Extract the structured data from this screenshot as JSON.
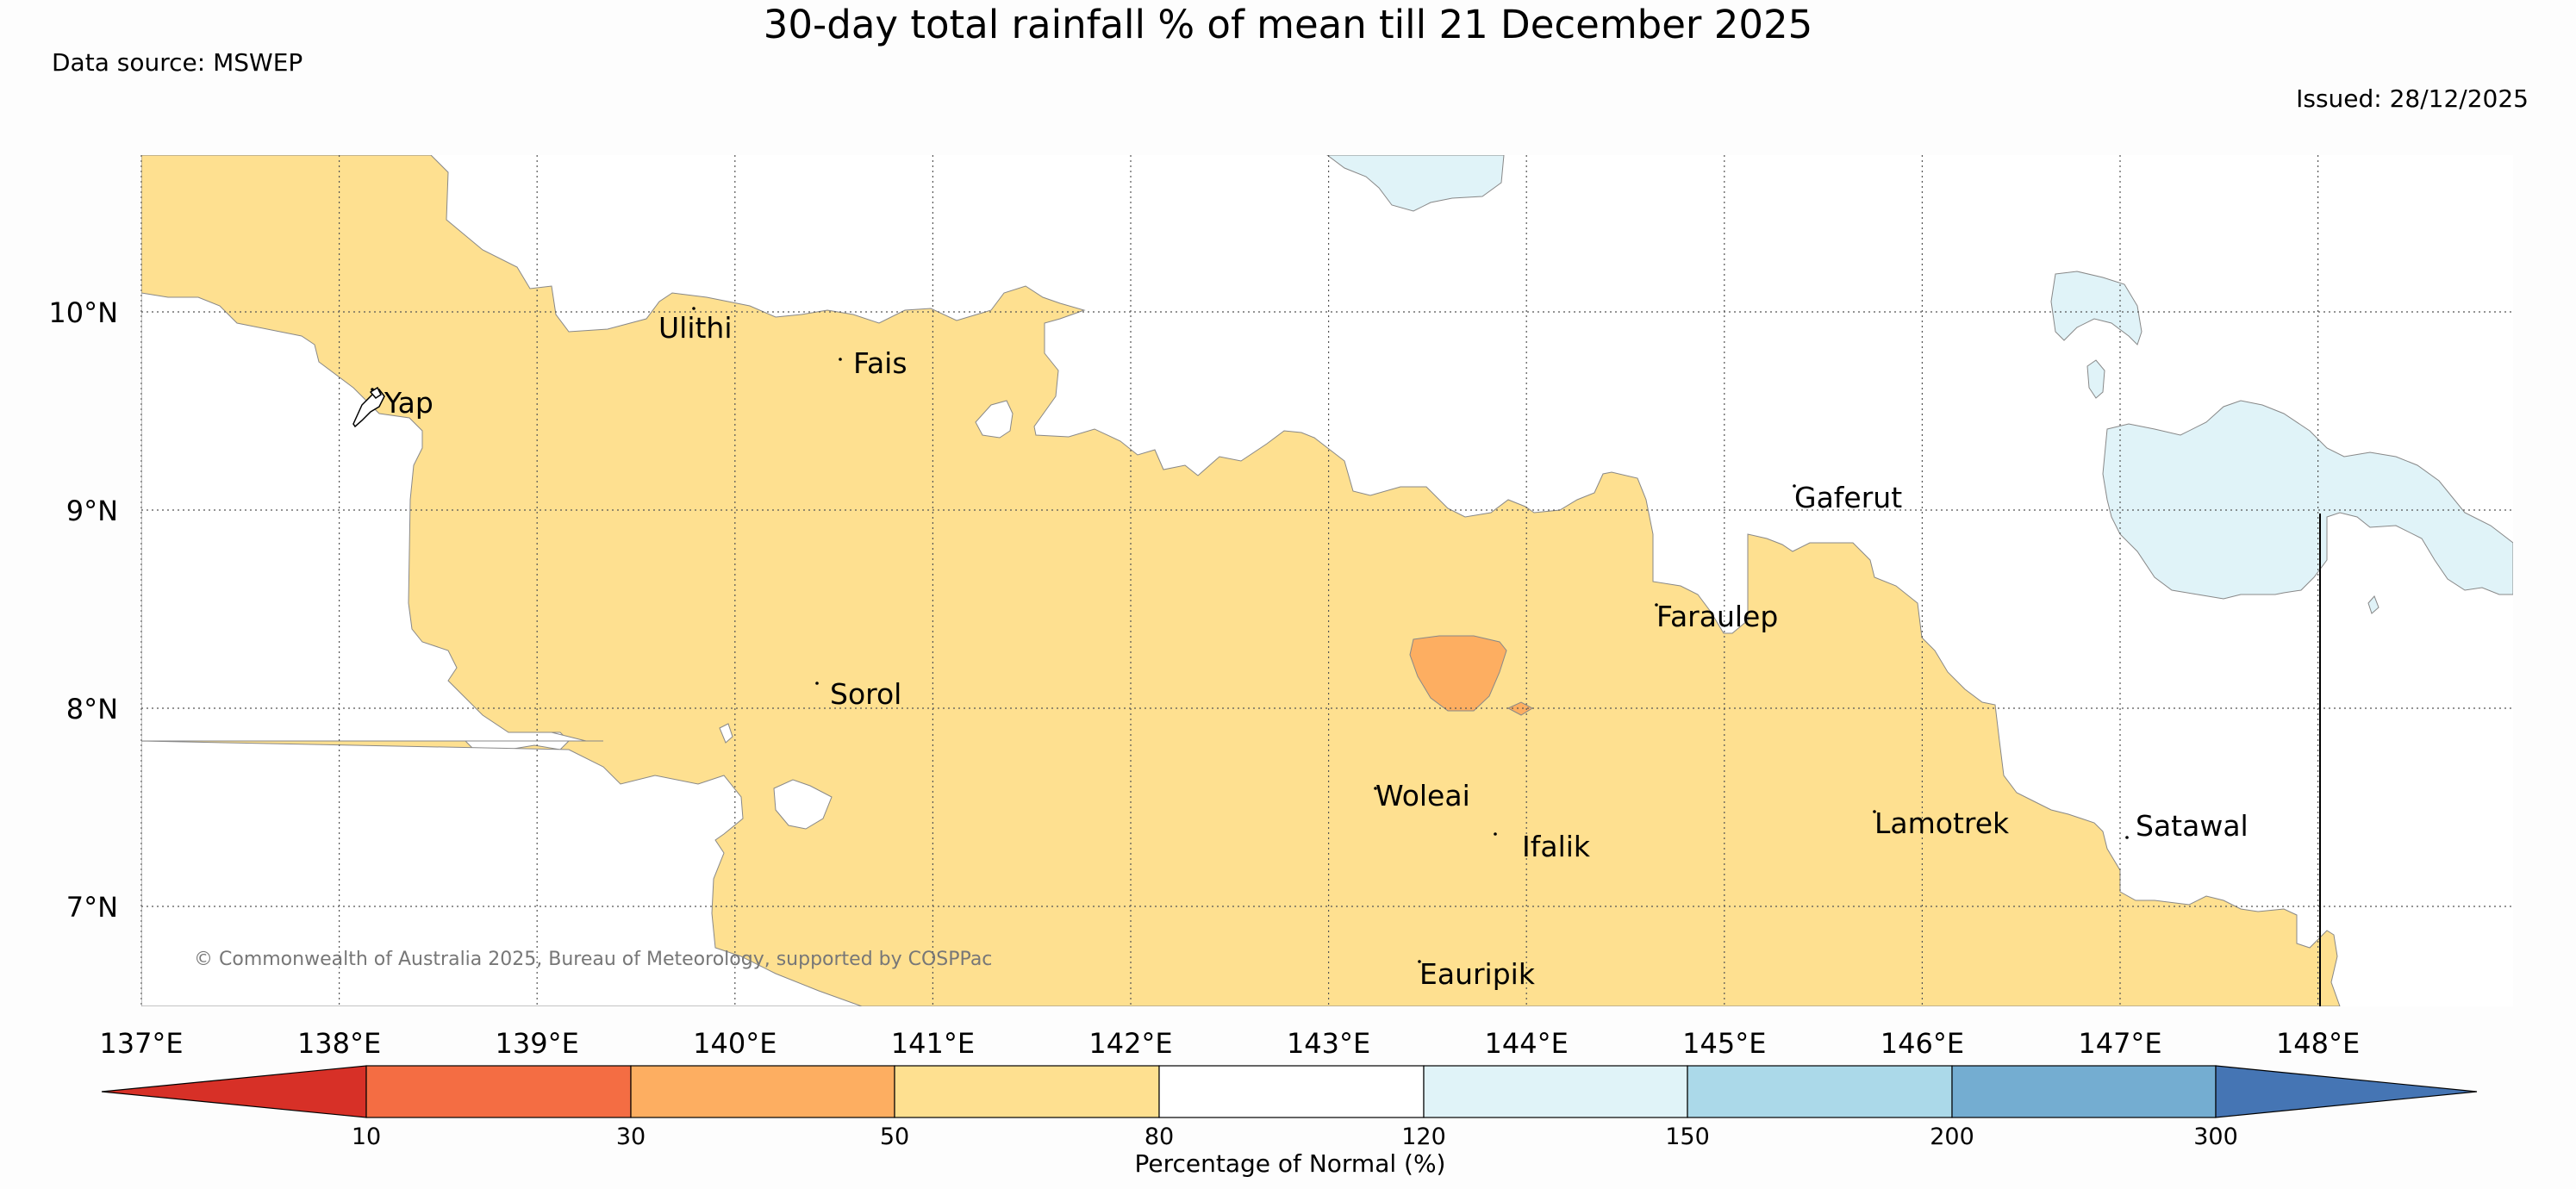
{
  "header": {
    "title": "30-day total rainfall % of mean till 21 December 2025",
    "data_source": "Data source: MSWEP",
    "issued": "Issued: 28/12/2025"
  },
  "map": {
    "lat_labels": [
      "10°N",
      "9°N",
      "8°N",
      "7°N"
    ],
    "lon_labels": [
      "137°E",
      "138°E",
      "139°E",
      "140°E",
      "141°E",
      "142°E",
      "143°E",
      "144°E",
      "145°E",
      "146°E",
      "147°E",
      "148°E"
    ],
    "places": [
      {
        "name": "Ulithi"
      },
      {
        "name": "Fais"
      },
      {
        "name": "Yap"
      },
      {
        "name": "Gaferut"
      },
      {
        "name": "Faraulep"
      },
      {
        "name": "Sorol"
      },
      {
        "name": "Woleai"
      },
      {
        "name": "Ifalik"
      },
      {
        "name": "Lamotrek"
      },
      {
        "name": "Satawal"
      },
      {
        "name": "Eauripik"
      }
    ],
    "copyright": "© Commonwealth of Australia 2025, Bureau of Meteorology, supported by COSPPac"
  },
  "legend": {
    "title": "Percentage of Normal (%)",
    "ticks": [
      "10",
      "30",
      "50",
      "80",
      "120",
      "150",
      "200",
      "300"
    ],
    "colors": {
      "below_10": "#d73027",
      "10_30": "#f46d43",
      "30_50": "#fdae61",
      "50_80": "#fee090",
      "80_120": "#ffffff",
      "120_150": "#e0f3f8",
      "150_200": "#abd9e9",
      "200_300": "#74add1",
      "above_300": "#4575b4"
    }
  }
}
